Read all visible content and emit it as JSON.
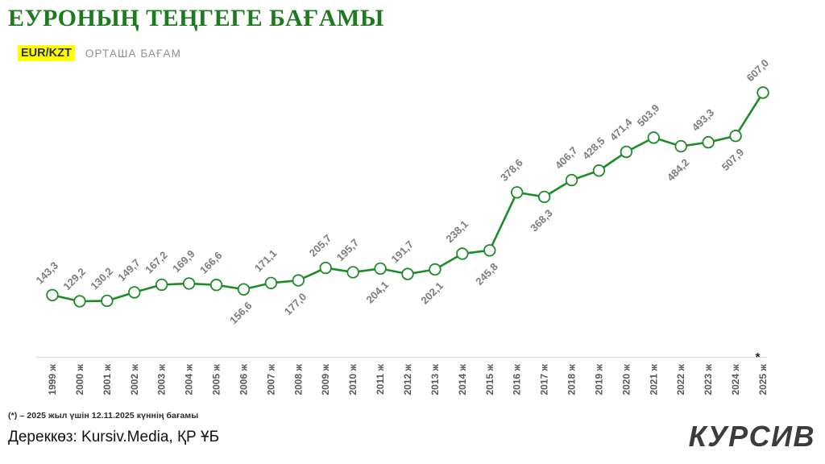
{
  "header": {
    "title": "ЕУРОНЫҢ ТЕҢГЕГЕ БАҒАМЫ",
    "pair": "EUR/KZT",
    "subtitle": "ОРТАША БАҒАМ",
    "title_color": "#1e7a1f",
    "highlight_color": "#ffff00"
  },
  "chart_data": {
    "type": "line",
    "title": "ЕУРОНЫҢ ТЕҢГЕГЕ БАҒАМЫ",
    "subtitle": "EUR/KZT ОРТАША БАҒАМ",
    "xlabel": "",
    "ylabel": "",
    "grid": "off",
    "legend": "off",
    "categories": [
      "1999 ж",
      "2000 ж",
      "2001 ж",
      "2002 ж",
      "2003 ж",
      "2004 ж",
      "2005 ж",
      "2006 ж",
      "2007 ж",
      "2008 ж",
      "2009 ж",
      "2010 ж",
      "2011 ж",
      "2012 ж",
      "2013 ж",
      "2014 ж",
      "2015 ж",
      "2016 ж",
      "2017 ж",
      "2018 ж",
      "2019 ж",
      "2020 ж",
      "2021 ж",
      "2022 ж",
      "2023 ж",
      "2024 ж",
      "2025 ж"
    ],
    "values": [
      143.3,
      129.2,
      130.2,
      149.7,
      167.2,
      169.9,
      166.6,
      156.6,
      171.1,
      177.0,
      205.7,
      195.7,
      204.1,
      191.7,
      202.1,
      238.1,
      245.8,
      378.6,
      368.3,
      406.7,
      428.5,
      471.4,
      503.9,
      484.2,
      493.3,
      507.9,
      607.0
    ],
    "ylim": [
      129.2,
      607.0
    ],
    "decimal_separator": ",",
    "label_below_indexes": [
      7,
      9,
      12,
      14,
      16,
      18,
      23,
      25
    ],
    "footnote_marker": "*",
    "line_color": "#1e8b29",
    "marker_fill": "#ffffff",
    "label_color": "#7d7d7d",
    "axis_color": "#d9d9d9",
    "tick_color": "#5a5a5a"
  },
  "footer": {
    "footnote": "(*) – 2025 жыл үшін 12.11.2025 күннің бағамы",
    "source": "Дереккөз: Kursiv.Media, ҚР ҰБ",
    "logo": "КУРСИВ"
  }
}
